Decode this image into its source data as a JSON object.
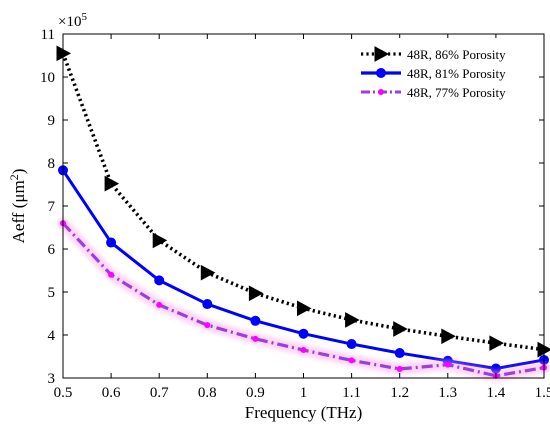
{
  "chart_data": {
    "type": "line",
    "x": [
      0.5,
      0.6,
      0.7,
      0.8,
      0.9,
      1.0,
      1.1,
      1.2,
      1.3,
      1.4,
      1.5
    ],
    "x_tick_labels": [
      "0.5",
      "0.6",
      "0.7",
      "0.8",
      "0.9",
      "1",
      "1.1",
      "1.2",
      "1.3",
      "1.4",
      "1.5"
    ],
    "y_tick_values": [
      3,
      4,
      5,
      6,
      7,
      8,
      9,
      10,
      11
    ],
    "y_tick_labels": [
      "3",
      "4",
      "5",
      "6",
      "7",
      "8",
      "9",
      "10",
      "11"
    ],
    "y_multiplier": "×10",
    "y_multiplier_exponent": "5",
    "xlim": [
      0.5,
      1.5
    ],
    "ylim": [
      3,
      11
    ],
    "xlabel": "Frequency (THz)",
    "ylabel": "Aeff (μm",
    "ylabel_superscript": "2",
    "ylabel_close": ")",
    "legend_position": "top-right",
    "grid": false,
    "series": [
      {
        "name": "48R, 86% Porosity",
        "color": "#000000",
        "line_style": "dotted",
        "marker": "triangle-right",
        "values": [
          10.55,
          7.52,
          6.2,
          5.45,
          4.97,
          4.62,
          4.35,
          4.14,
          3.97,
          3.81,
          3.66
        ]
      },
      {
        "name": "48R, 81% Porosity",
        "color": "#0000ff",
        "line_style": "solid",
        "marker": "circle",
        "values": [
          7.83,
          6.15,
          5.27,
          4.72,
          4.33,
          4.03,
          3.79,
          3.58,
          3.4,
          3.22,
          3.42
        ]
      },
      {
        "name": "48R, 77% Porosity",
        "color": "#ff00ff",
        "line_style": "dashdot",
        "marker": "small-circle",
        "values": [
          6.6,
          5.4,
          4.7,
          4.23,
          3.91,
          3.65,
          3.41,
          3.21,
          3.31,
          3.05,
          3.24
        ]
      }
    ]
  }
}
